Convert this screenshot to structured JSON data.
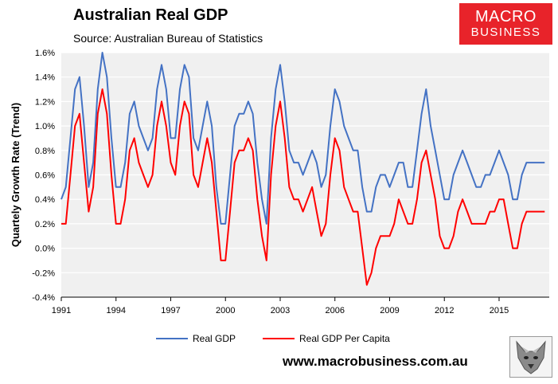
{
  "header": {
    "title": "Australian Real GDP",
    "subtitle": "Source: Australian Bureau of Statistics"
  },
  "logo": {
    "line1": "MACRO",
    "line2": "BUSINESS"
  },
  "footer": {
    "website": "www.macrobusiness.com.au"
  },
  "colors": {
    "real_gdp": "#4472c4",
    "real_gdp_per_capita": "#ff0000",
    "plot_bg": "#f0f0f0",
    "logo_bg": "#e8232a"
  },
  "icons": {
    "wolf": "wolf-head-icon"
  },
  "chart_data": {
    "type": "line",
    "title": "Australian Real GDP",
    "subtitle": "Source: Australian Bureau of Statistics",
    "xlabel": "",
    "ylabel": "Quartely Growth Rate (Trend)",
    "x_start": 1991,
    "x_step": 0.25,
    "xlim": [
      1991,
      2017.75
    ],
    "ylim": [
      -0.4,
      1.6
    ],
    "y_ticks": [
      -0.4,
      -0.2,
      0.0,
      0.2,
      0.4,
      0.6,
      0.8,
      1.0,
      1.2,
      1.4,
      1.6
    ],
    "y_tick_labels": [
      "-0.4%",
      "-0.2%",
      "0.0%",
      "0.2%",
      "0.4%",
      "0.6%",
      "0.8%",
      "1.0%",
      "1.2%",
      "1.4%",
      "1.6%"
    ],
    "x_ticks": [
      1991,
      1994,
      1997,
      2000,
      2003,
      2006,
      2009,
      2012,
      2015
    ],
    "x_tick_labels": [
      "1991",
      "1994",
      "1997",
      "2000",
      "2003",
      "2006",
      "2009",
      "2012",
      "2015"
    ],
    "grid": "horizontal",
    "legend_position": "bottom",
    "series": [
      {
        "name": "Real GDP",
        "color": "#4472c4",
        "values": [
          0.4,
          0.5,
          0.9,
          1.3,
          1.4,
          1.0,
          0.5,
          0.7,
          1.3,
          1.6,
          1.4,
          0.9,
          0.5,
          0.5,
          0.7,
          1.1,
          1.2,
          1.0,
          0.9,
          0.8,
          0.9,
          1.3,
          1.5,
          1.3,
          0.9,
          0.9,
          1.3,
          1.5,
          1.4,
          0.9,
          0.8,
          1.0,
          1.2,
          1.0,
          0.5,
          0.2,
          0.2,
          0.6,
          1.0,
          1.1,
          1.1,
          1.2,
          1.1,
          0.7,
          0.4,
          0.2,
          0.9,
          1.3,
          1.5,
          1.2,
          0.8,
          0.7,
          0.7,
          0.6,
          0.7,
          0.8,
          0.7,
          0.5,
          0.6,
          1.0,
          1.3,
          1.2,
          1.0,
          0.9,
          0.8,
          0.8,
          0.5,
          0.3,
          0.3,
          0.5,
          0.6,
          0.6,
          0.5,
          0.6,
          0.7,
          0.7,
          0.5,
          0.5,
          0.8,
          1.1,
          1.3,
          1.0,
          0.8,
          0.6,
          0.4,
          0.4,
          0.6,
          0.7,
          0.8,
          0.7,
          0.6,
          0.5,
          0.5,
          0.6,
          0.6,
          0.7,
          0.8,
          0.7,
          0.6,
          0.4,
          0.4,
          0.6,
          0.7,
          0.7,
          0.7,
          0.7,
          0.7
        ]
      },
      {
        "name": "Real GDP Per Capita",
        "color": "#ff0000",
        "values": [
          0.2,
          0.2,
          0.6,
          1.0,
          1.1,
          0.7,
          0.3,
          0.5,
          1.1,
          1.3,
          1.1,
          0.6,
          0.2,
          0.2,
          0.4,
          0.8,
          0.9,
          0.7,
          0.6,
          0.5,
          0.6,
          1.0,
          1.2,
          1.0,
          0.7,
          0.6,
          1.0,
          1.2,
          1.1,
          0.6,
          0.5,
          0.7,
          0.9,
          0.7,
          0.3,
          -0.1,
          -0.1,
          0.3,
          0.7,
          0.8,
          0.8,
          0.9,
          0.8,
          0.4,
          0.1,
          -0.1,
          0.6,
          1.0,
          1.2,
          0.9,
          0.5,
          0.4,
          0.4,
          0.3,
          0.4,
          0.5,
          0.3,
          0.1,
          0.2,
          0.6,
          0.9,
          0.8,
          0.5,
          0.4,
          0.3,
          0.3,
          0.0,
          -0.3,
          -0.2,
          0.0,
          0.1,
          0.1,
          0.1,
          0.2,
          0.4,
          0.3,
          0.2,
          0.2,
          0.4,
          0.7,
          0.8,
          0.6,
          0.4,
          0.1,
          0.0,
          0.0,
          0.1,
          0.3,
          0.4,
          0.3,
          0.2,
          0.2,
          0.2,
          0.2,
          0.3,
          0.3,
          0.4,
          0.4,
          0.2,
          0.0,
          0.0,
          0.2,
          0.3,
          0.3,
          0.3,
          0.3,
          0.3
        ]
      }
    ]
  }
}
